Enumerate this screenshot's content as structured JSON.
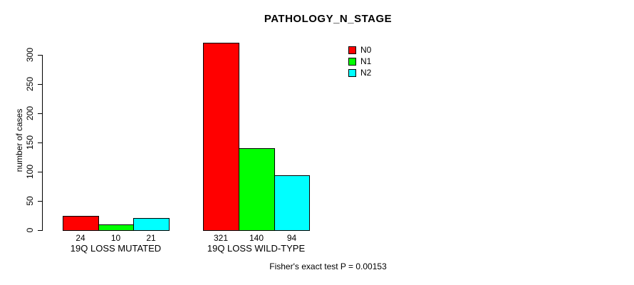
{
  "chart_data": {
    "type": "bar",
    "title": "PATHOLOGY_N_STAGE",
    "xlabel": "",
    "ylabel": "number of cases",
    "categories": [
      "19Q LOSS MUTATED",
      "19Q LOSS WILD-TYPE"
    ],
    "series": [
      {
        "name": "N0",
        "color": "#FF0000",
        "values": [
          24,
          321
        ]
      },
      {
        "name": "N1",
        "color": "#00FF00",
        "values": [
          10,
          140
        ]
      },
      {
        "name": "N2",
        "color": "#00FFFF",
        "values": [
          21,
          94
        ]
      }
    ],
    "value_labels": [
      [
        24,
        10,
        21
      ],
      [
        321,
        140,
        94
      ]
    ],
    "yticks": [
      0,
      50,
      100,
      150,
      200,
      250,
      300
    ],
    "ylim": [
      0,
      330
    ],
    "grid": false,
    "legend_position": "top-right",
    "legend_items": [
      "N0",
      "N1",
      "N2"
    ],
    "annotation": "Fisher's exact test P = 0.00153"
  }
}
